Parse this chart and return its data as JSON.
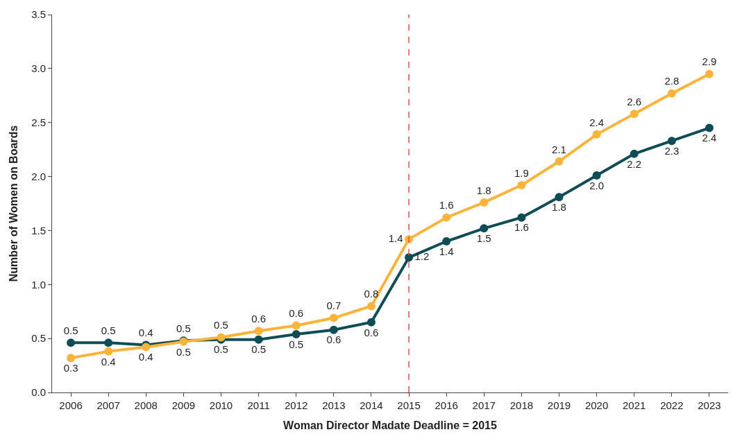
{
  "chart_data": {
    "type": "line",
    "xlabel": "Woman Director Madate Deadline = 2015",
    "ylabel": "Number of Women on Boards",
    "categories": [
      "2006",
      "2007",
      "2008",
      "2009",
      "2010",
      "2011",
      "2012",
      "2013",
      "2014",
      "2015",
      "2016",
      "2017",
      "2018",
      "2019",
      "2020",
      "2021",
      "2022",
      "2023"
    ],
    "series": [
      {
        "color": "#0e4d56",
        "values": [
          0.46,
          0.46,
          0.44,
          0.48,
          0.49,
          0.49,
          0.54,
          0.58,
          0.65,
          1.25,
          1.4,
          1.52,
          1.62,
          1.81,
          2.01,
          2.21,
          2.33,
          2.45
        ],
        "value_labels": [
          "0.5",
          "0.5",
          "0.4",
          "0.5",
          "0.5",
          "0.5",
          "0.5",
          "0.6",
          "0.6",
          "1.2",
          "1.4",
          "1.5",
          "1.6",
          "1.8",
          "2.0",
          "2.2",
          "2.3",
          "2.4"
        ]
      },
      {
        "color": "#fbb33a",
        "values": [
          0.32,
          0.38,
          0.42,
          0.47,
          0.51,
          0.57,
          0.62,
          0.69,
          0.8,
          1.42,
          1.62,
          1.76,
          1.92,
          2.14,
          2.39,
          2.58,
          2.77,
          2.95
        ],
        "value_labels": [
          "0.3",
          "0.4",
          "0.4",
          "0.5",
          "0.5",
          "0.6",
          "0.6",
          "0.7",
          "0.8",
          "1.4",
          "1.6",
          "1.8",
          "1.9",
          "2.1",
          "2.4",
          "2.6",
          "2.8",
          "2.9"
        ]
      }
    ],
    "ylim": [
      0,
      3.5
    ],
    "yticks": [
      {
        "value": 0,
        "label": "0.0"
      },
      {
        "value": 0.5,
        "label": "0.5"
      },
      {
        "value": 1,
        "label": "1.0"
      },
      {
        "value": 1.5,
        "label": "1.5"
      },
      {
        "value": 2,
        "label": "2.0"
      },
      {
        "value": 2.5,
        "label": "2.5"
      },
      {
        "value": 3,
        "label": "3.0"
      },
      {
        "value": 3.5,
        "label": "3.5"
      }
    ],
    "ref_lines": [
      {
        "axis": "x",
        "value": "2015",
        "color": "#d9534f",
        "line_style": "dashed"
      }
    ],
    "legend": false,
    "marker": "circle",
    "line_style": "solid"
  }
}
